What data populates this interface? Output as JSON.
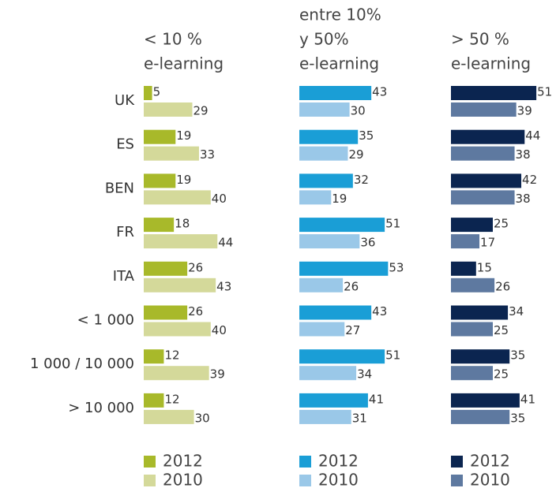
{
  "chart_data": {
    "type": "bar",
    "orientation": "horizontal",
    "categories": [
      "UK",
      "ES",
      "BEN",
      "FR",
      "ITA",
      "< 1 000",
      "1 000 / 10 000",
      "> 10 000"
    ],
    "groups": [
      {
        "title": [
          "< 10 %",
          "e-learning"
        ],
        "series": [
          {
            "name": "2012",
            "color": "#a8b92a",
            "values": [
              5,
              19,
              19,
              18,
              26,
              26,
              12,
              12
            ]
          },
          {
            "name": "2010",
            "color": "#d4d99a",
            "values": [
              29,
              33,
              40,
              44,
              43,
              40,
              39,
              30
            ]
          }
        ]
      },
      {
        "title": [
          "entre 10%",
          "y 50%",
          "e-learning"
        ],
        "series": [
          {
            "name": "2012",
            "color": "#1a9ed6",
            "values": [
              43,
              35,
              32,
              51,
              53,
              43,
              51,
              41
            ]
          },
          {
            "name": "2010",
            "color": "#9ac8e8",
            "values": [
              30,
              29,
              19,
              36,
              26,
              27,
              34,
              31
            ]
          }
        ]
      },
      {
        "title": [
          "> 50 %",
          "e-learning"
        ],
        "series": [
          {
            "name": "2012",
            "color": "#0b2550",
            "values": [
              51,
              44,
              42,
              25,
              15,
              34,
              35,
              41
            ]
          },
          {
            "name": "2010",
            "color": "#5e79a0",
            "values": [
              39,
              38,
              38,
              17,
              26,
              25,
              25,
              35
            ]
          }
        ]
      }
    ]
  }
}
